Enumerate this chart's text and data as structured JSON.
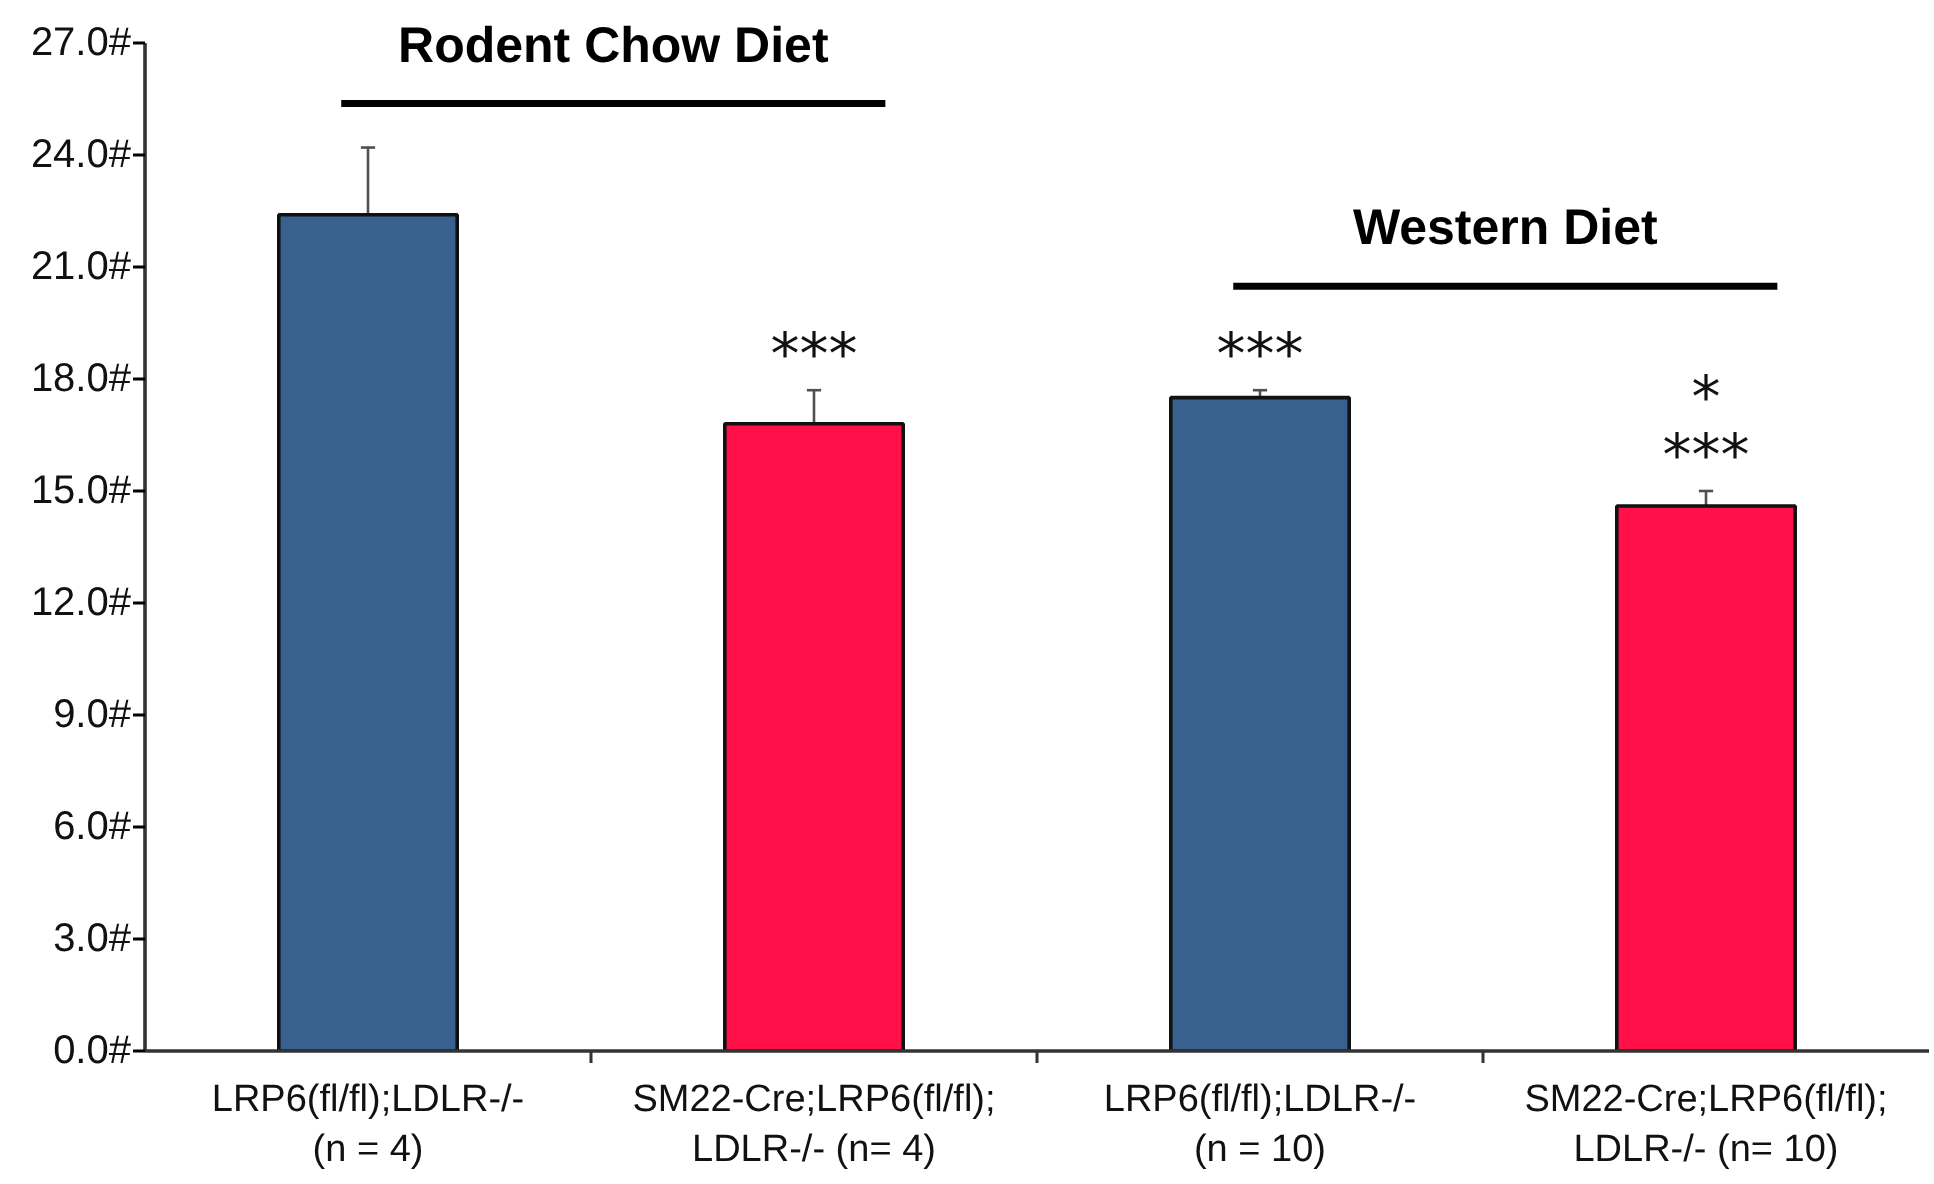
{
  "chart_data": {
    "type": "bar",
    "categories": [
      "LRP6(fl/fl);LDLR-/-\n(n = 4)",
      "SM22-Cre;LRP6(fl/fl);\nLDLR-/- (n= 4)",
      "LRP6(fl/fl);LDLR-/-\n(n = 10)",
      "SM22-Cre;LRP6(fl/fl);\nLDLR-/- (n= 10)"
    ],
    "values": [
      22.4,
      16.8,
      17.5,
      14.6
    ],
    "colors": [
      "#38618f",
      "#ff1048",
      "#38618f",
      "#ff1048"
    ],
    "errors": [
      [
        22.4,
        24.2
      ],
      [
        16.8,
        17.7
      ],
      [
        17.5,
        17.7
      ],
      [
        14.6,
        15.0
      ]
    ],
    "ylim": [
      0,
      27
    ],
    "yticks": [
      {
        "value": 0,
        "label": "0.0#"
      },
      {
        "value": 3,
        "label": "3.0#"
      },
      {
        "value": 6,
        "label": "6.0#"
      },
      {
        "value": 9,
        "label": "9.0#"
      },
      {
        "value": 12,
        "label": "12.0#"
      },
      {
        "value": 15,
        "label": "15.0#"
      },
      {
        "value": 18,
        "label": "18.0#"
      },
      {
        "value": 21,
        "label": "21.0#"
      },
      {
        "value": 24,
        "label": "24.0#"
      },
      {
        "value": 27,
        "label": "27.0#"
      }
    ],
    "grid": false,
    "annotations": [
      "Rodent Chow Diet",
      "Western Diet",
      {
        "text": "***",
        "x": "SM22-Cre;LRP6(fl/fl);\nLDLR-/- (n= 4)",
        "y": 17.7
      },
      {
        "text": "***",
        "x": "LRP6(fl/fl);LDLR-/-\n(n = 10)",
        "y": 17.7
      },
      {
        "text": "***",
        "x": "SM22-Cre;LRP6(fl/fl);\nLDLR-/- (n= 10)",
        "y": 15.0
      },
      {
        "text": "*",
        "x": "SM22-Cre;LRP6(fl/fl);\nLDLR-/- (n= 10)",
        "y": 15.0
      }
    ]
  }
}
